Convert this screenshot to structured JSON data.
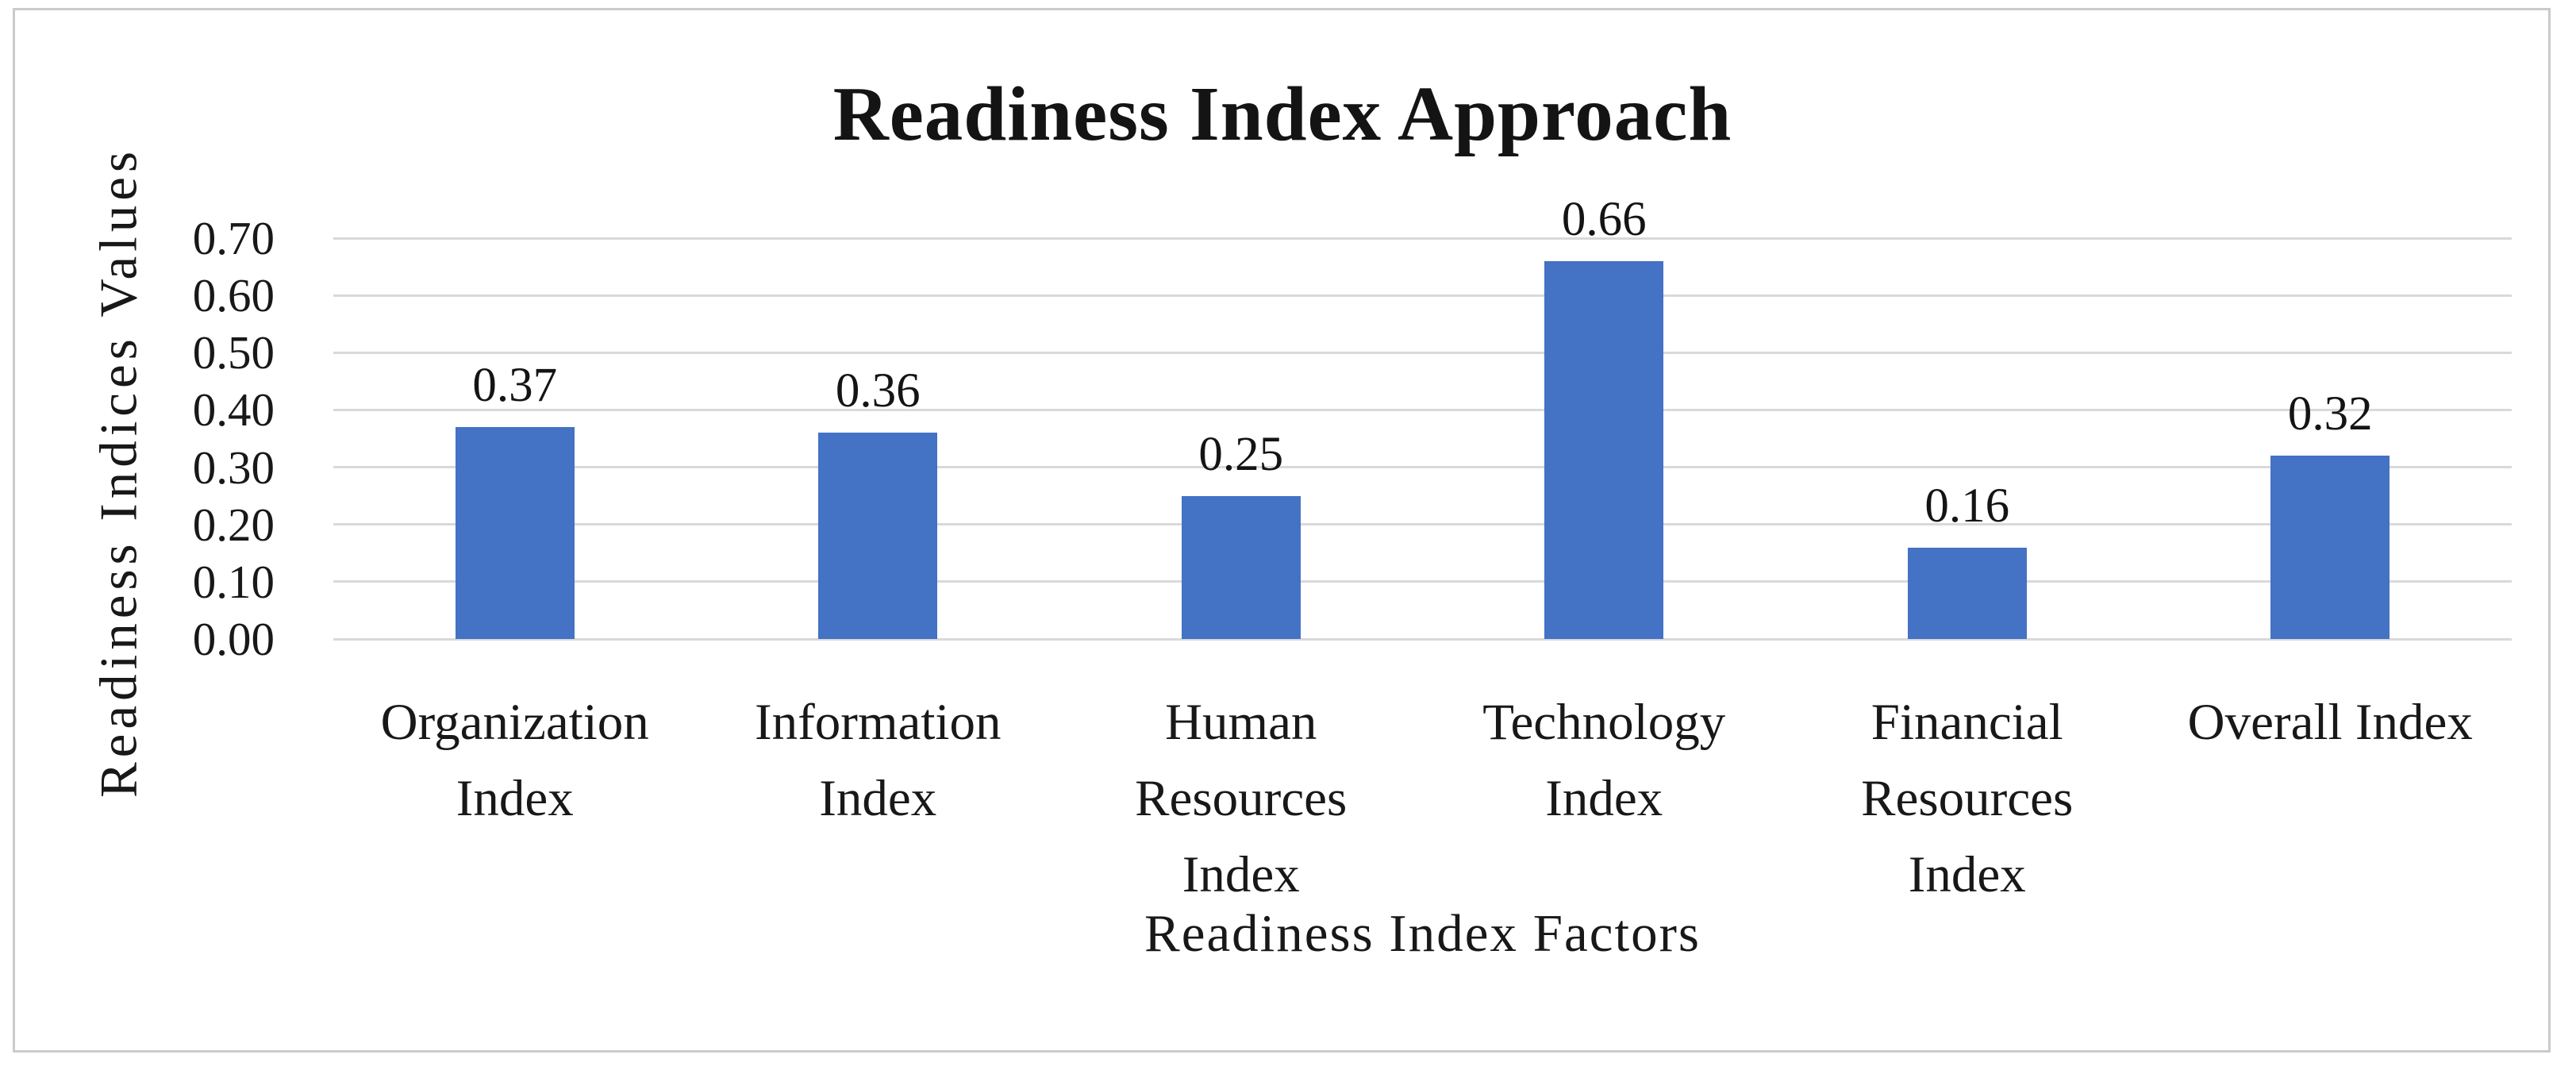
{
  "chart_data": {
    "type": "bar",
    "title": "Readiness Index Approach",
    "xlabel": "Readiness Index Factors",
    "ylabel": "Readiness Indices Values",
    "categories": [
      "Organization Index",
      "Information Index",
      "Human Resources Index",
      "Technology Index",
      "Financial Resources Index",
      "Overall Index"
    ],
    "category_lines": [
      [
        "Organization",
        "Index"
      ],
      [
        "Information",
        "Index"
      ],
      [
        "Human",
        "Resources",
        "Index"
      ],
      [
        "Technology",
        "Index"
      ],
      [
        "Financial",
        "Resources",
        "Index"
      ],
      [
        "Overall Index"
      ]
    ],
    "values": [
      0.37,
      0.36,
      0.25,
      0.66,
      0.16,
      0.32
    ],
    "data_labels": [
      "0.37",
      "0.36",
      "0.25",
      "0.66",
      "0.16",
      "0.32"
    ],
    "yticks": [
      "0.70",
      "0.60",
      "0.50",
      "0.40",
      "0.30",
      "0.20",
      "0.10",
      "0.00"
    ],
    "ylim": [
      0.0,
      0.7
    ],
    "grid": true,
    "legend": "none",
    "bar_color": "#4472C4",
    "gridline_color": "#D9D9D9",
    "frame_border_color": "#CBCBCB"
  }
}
